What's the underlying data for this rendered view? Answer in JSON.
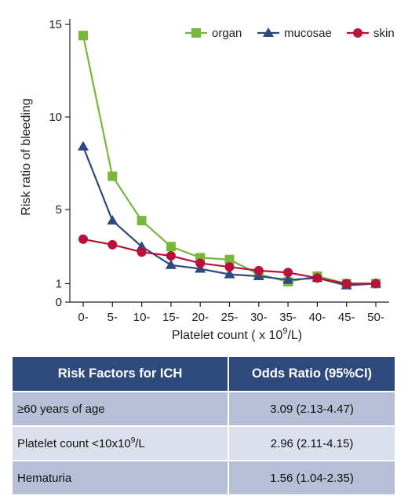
{
  "chart_data": {
    "type": "line",
    "title": "",
    "xlabel_prefix": "Platelet count ( x 10",
    "xlabel_sup": "9",
    "xlabel_suffix": "/L)",
    "ylabel": "Risk ratio of bleeding",
    "categories": [
      "0-",
      "5-",
      "10-",
      "15-",
      "20-",
      "25-",
      "30-",
      "35-",
      "40-",
      "45-",
      "50-"
    ],
    "ylim": [
      0,
      15.3
    ],
    "yticks": [
      0,
      1,
      5,
      10,
      15
    ],
    "legend_position": "top-right",
    "series": [
      {
        "name": "organ",
        "color": "#78b73a",
        "marker": "square",
        "values": [
          14.4,
          6.8,
          4.4,
          3.0,
          2.4,
          2.3,
          1.5,
          1.1,
          1.4,
          1.0,
          1.0
        ]
      },
      {
        "name": "mucosae",
        "color": "#2e4a7d",
        "marker": "triangle",
        "values": [
          8.4,
          4.4,
          3.0,
          2.0,
          1.8,
          1.5,
          1.4,
          1.2,
          1.3,
          0.9,
          1.0
        ]
      },
      {
        "name": "skin",
        "color": "#b8123a",
        "marker": "circle",
        "values": [
          3.4,
          3.1,
          2.7,
          2.5,
          2.1,
          1.9,
          1.7,
          1.6,
          1.3,
          1.0,
          1.0
        ]
      }
    ]
  },
  "table": {
    "headers": [
      "Risk Factors for ICH",
      "Odds Ratio (95%CI)"
    ],
    "rows": [
      {
        "factor": "≥60 years of age",
        "odds": "3.09 (2.13-4.47)"
      },
      {
        "factor_prefix": "Platelet count <10x10",
        "factor_sup": "9",
        "factor_suffix": "/L",
        "odds": "2.96 (2.11-4.15)"
      },
      {
        "factor": "Hematuria",
        "odds": "1.56 (1.04-2.35)"
      }
    ]
  }
}
